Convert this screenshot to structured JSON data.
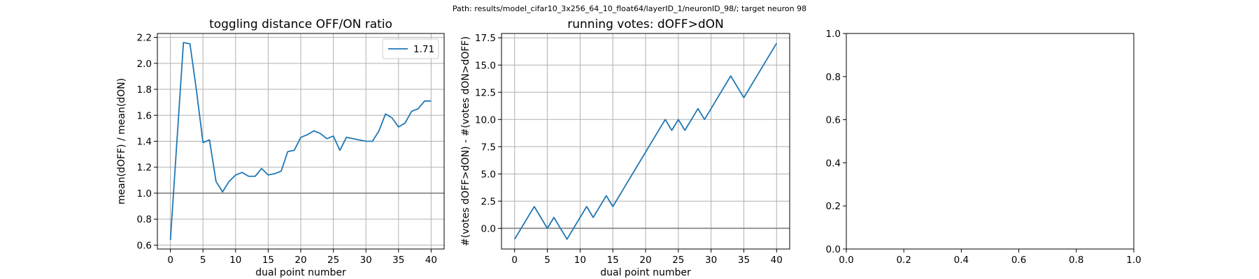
{
  "suptitle": "Path: results/model_cifar10_3x256_64_10_float64/layerID_1/neuronID_98/; target neuron 98",
  "colors": {
    "line": "#1f77b4",
    "ref": "#808080",
    "grid": "#b0b0b0"
  },
  "chart_data": [
    {
      "type": "line",
      "title": "toggling distance OFF/ON ratio",
      "xlabel": "dual point number",
      "ylabel": "mean(dOFF) / mean(dON)",
      "xlim": [
        -2,
        42
      ],
      "ylim": [
        0.57,
        2.23
      ],
      "xticks": [
        0,
        5,
        10,
        15,
        20,
        25,
        30,
        35,
        40
      ],
      "yticks": [
        0.6,
        0.8,
        1.0,
        1.2,
        1.4,
        1.6,
        1.8,
        2.0,
        2.2
      ],
      "ytick_labels": [
        "0.6",
        "0.8",
        "1.0",
        "1.2",
        "1.4",
        "1.6",
        "1.8",
        "2.0",
        "2.2"
      ],
      "grid": true,
      "legend": {
        "placement": "upper right",
        "entries": [
          "1.71"
        ]
      },
      "hline": 1.0,
      "series": [
        {
          "name": "1.71",
          "x": [
            0,
            1,
            2,
            3,
            4,
            5,
            6,
            7,
            8,
            9,
            10,
            11,
            12,
            13,
            14,
            15,
            16,
            17,
            18,
            19,
            20,
            21,
            22,
            23,
            24,
            25,
            26,
            27,
            28,
            29,
            30,
            31,
            32,
            33,
            34,
            35,
            36,
            37,
            38,
            39,
            40
          ],
          "y": [
            0.64,
            1.4,
            2.16,
            2.15,
            1.79,
            1.39,
            1.41,
            1.09,
            1.01,
            1.09,
            1.14,
            1.16,
            1.13,
            1.13,
            1.19,
            1.14,
            1.15,
            1.17,
            1.32,
            1.33,
            1.43,
            1.45,
            1.48,
            1.46,
            1.42,
            1.44,
            1.33,
            1.43,
            1.42,
            1.41,
            1.4,
            1.4,
            1.48,
            1.61,
            1.58,
            1.51,
            1.54,
            1.63,
            1.65,
            1.71,
            1.71
          ]
        }
      ]
    },
    {
      "type": "line",
      "title": "running votes: dOFF>dON",
      "xlabel": "dual point number",
      "ylabel": "#(votes dOFF>dON) - #(votes dON>dOFF)",
      "xlim": [
        -2,
        42
      ],
      "ylim": [
        -1.9,
        17.9
      ],
      "xticks": [
        0,
        5,
        10,
        15,
        20,
        25,
        30,
        35,
        40
      ],
      "yticks": [
        0,
        2.5,
        5,
        7.5,
        10,
        12.5,
        15,
        17.5
      ],
      "ytick_labels": [
        "0.0",
        "2.5",
        "5.0",
        "7.5",
        "10.0",
        "12.5",
        "15.0",
        "17.5"
      ],
      "grid": true,
      "hline": 0,
      "series": [
        {
          "x": [
            0,
            3,
            5,
            6,
            8,
            11,
            12,
            14,
            15,
            23,
            24,
            25,
            26,
            28,
            29,
            33,
            35,
            40
          ],
          "y": [
            -1,
            2,
            0,
            1,
            -1,
            2,
            1,
            3,
            2,
            10,
            9,
            10,
            9,
            11,
            10,
            14,
            12,
            17
          ]
        }
      ]
    },
    {
      "type": "line",
      "title": "",
      "xlabel": "",
      "ylabel": "",
      "xlim": [
        0,
        1
      ],
      "ylim": [
        0,
        1
      ],
      "xticks": [
        0,
        0.2,
        0.4,
        0.6,
        0.8,
        1.0
      ],
      "xtick_labels": [
        "0.0",
        "0.2",
        "0.4",
        "0.6",
        "0.8",
        "1.0"
      ],
      "yticks": [
        0,
        0.2,
        0.4,
        0.6,
        0.8,
        1.0
      ],
      "ytick_labels": [
        "0.0",
        "0.2",
        "0.4",
        "0.6",
        "0.8",
        "1.0"
      ],
      "grid": false,
      "series": []
    }
  ]
}
